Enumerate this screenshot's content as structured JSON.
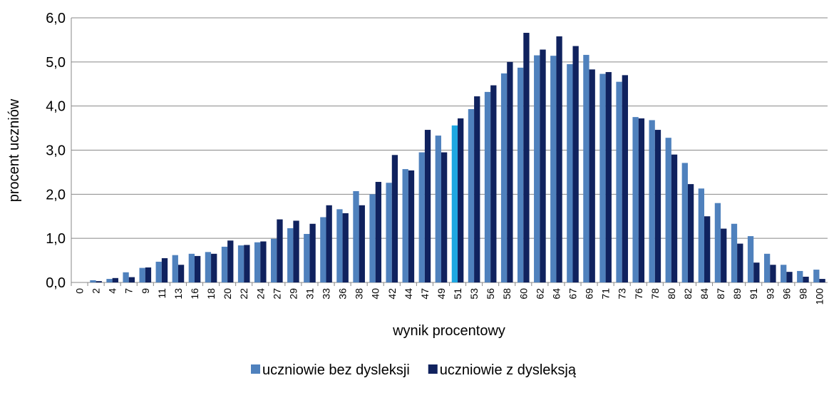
{
  "chart_data": {
    "type": "bar",
    "categories": [
      "0",
      "2",
      "4",
      "7",
      "9",
      "11",
      "13",
      "16",
      "18",
      "20",
      "22",
      "24",
      "27",
      "29",
      "31",
      "33",
      "36",
      "38",
      "40",
      "42",
      "44",
      "47",
      "49",
      "51",
      "53",
      "56",
      "58",
      "60",
      "62",
      "64",
      "67",
      "69",
      "71",
      "73",
      "76",
      "78",
      "80",
      "82",
      "84",
      "87",
      "89",
      "91",
      "93",
      "96",
      "98",
      "100"
    ],
    "series": [
      {
        "name": "uczniowie bez dysleksji",
        "color": "#4f81bd",
        "values": [
          0,
          0.05,
          0.08,
          0.23,
          0.33,
          0.47,
          0.62,
          0.65,
          0.69,
          0.81,
          0.84,
          0.91,
          0.99,
          1.23,
          1.1,
          1.48,
          1.66,
          2.07,
          2.0,
          2.26,
          2.57,
          2.95,
          3.33,
          3.56,
          3.93,
          4.32,
          4.74,
          4.87,
          5.15,
          5.14,
          4.95,
          5.16,
          4.73,
          4.55,
          3.75,
          3.68,
          3.28,
          2.71,
          2.13,
          1.8,
          1.33,
          1.05,
          0.65,
          0.4,
          0.26,
          0.29
        ]
      },
      {
        "name": "uczniowie z dysleksją",
        "color": "#10225e",
        "values": [
          0,
          0.03,
          0.1,
          0.12,
          0.34,
          0.55,
          0.4,
          0.6,
          0.65,
          0.95,
          0.85,
          0.93,
          1.43,
          1.4,
          1.33,
          1.75,
          1.57,
          1.75,
          2.28,
          2.89,
          2.54,
          3.46,
          2.95,
          3.72,
          4.22,
          4.47,
          5.0,
          5.66,
          5.28,
          5.58,
          5.36,
          4.83,
          4.77,
          4.7,
          3.72,
          3.46,
          2.9,
          2.23,
          1.5,
          1.22,
          0.88,
          0.45,
          0.4,
          0.24,
          0.13,
          0.08
        ]
      }
    ],
    "highlight": {
      "category": "51",
      "color": "#1ea7e1"
    },
    "xlabel": "wynik procentowy",
    "ylabel": "procent uczniów",
    "ylim": [
      0,
      6
    ],
    "yticks": [
      {
        "value": 0,
        "label": "0,0"
      },
      {
        "value": 1,
        "label": "1,0"
      },
      {
        "value": 2,
        "label": "2,0"
      },
      {
        "value": 3,
        "label": "3,0"
      },
      {
        "value": 4,
        "label": "4,0"
      },
      {
        "value": 5,
        "label": "5,0"
      },
      {
        "value": 6,
        "label": "6,0"
      }
    ],
    "grid": true,
    "legend": "bottom"
  }
}
